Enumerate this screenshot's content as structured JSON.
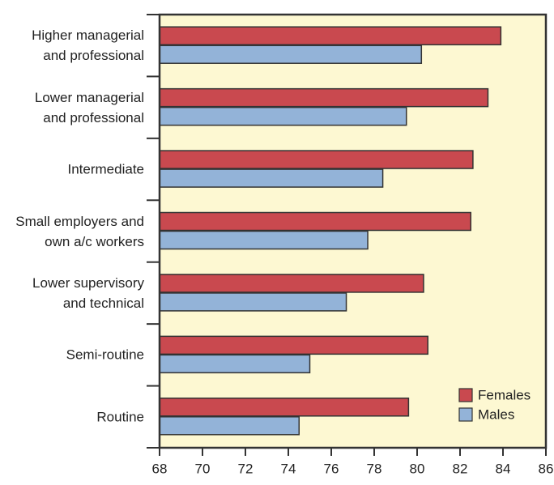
{
  "chart_data": {
    "type": "barh",
    "categories": [
      "Higher managerial\nand professional",
      "Lower managerial\nand professional",
      "Intermediate",
      "Small employers and\nown a/c workers",
      "Lower supervisory\nand technical",
      "Semi-routine",
      "Routine"
    ],
    "series": [
      {
        "name": "Females",
        "color": "#c9494f",
        "values": [
          83.9,
          83.3,
          82.6,
          82.5,
          80.3,
          80.5,
          79.6
        ]
      },
      {
        "name": "Males",
        "color": "#93b3d8",
        "values": [
          80.2,
          79.5,
          78.4,
          77.7,
          76.7,
          75.0,
          74.5
        ]
      }
    ],
    "xlim": [
      68,
      86
    ],
    "xticks": [
      68,
      70,
      72,
      74,
      76,
      78,
      80,
      82,
      84,
      86
    ],
    "background": "#fdf8d2",
    "legend": "lower right"
  }
}
